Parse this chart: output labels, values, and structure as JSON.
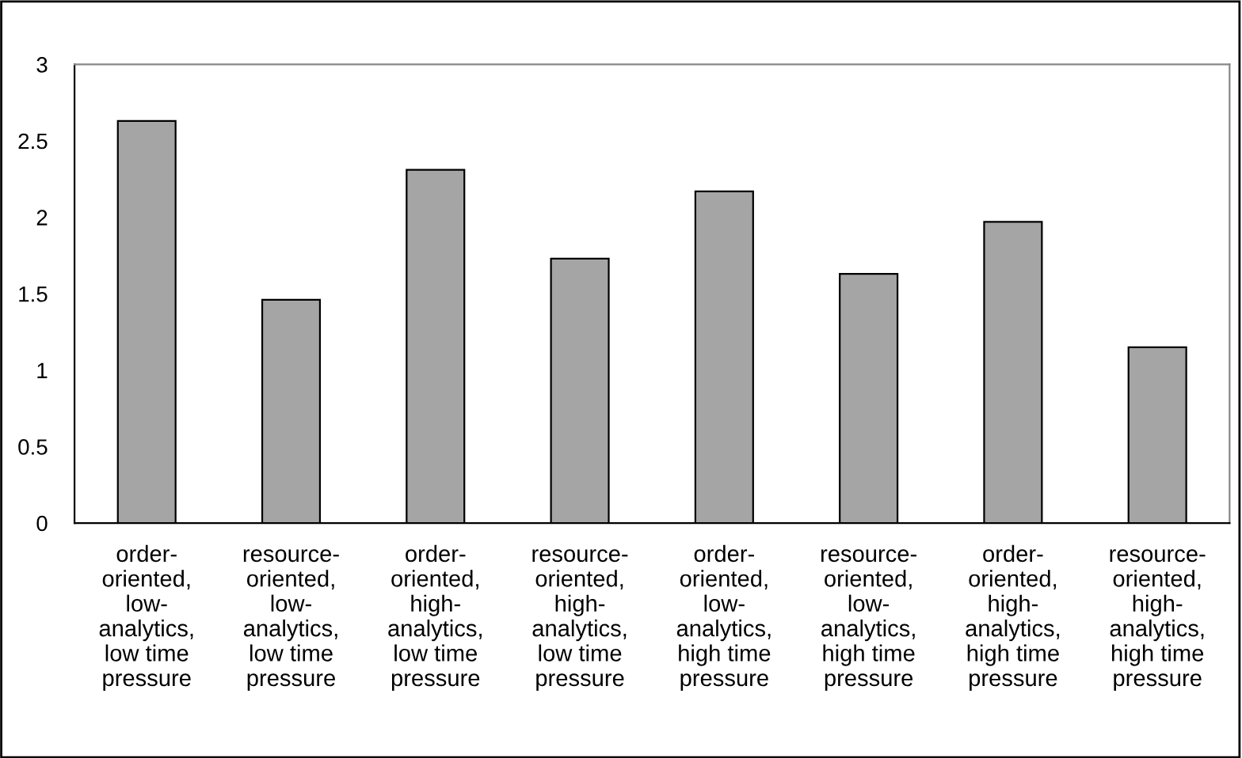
{
  "chart_data": {
    "type": "bar",
    "categories": [
      "order-\noriented,\nlow-\nanalytics,\nlow time\npressure",
      "resource-\noriented,\nlow-\nanalytics,\nlow time\npressure",
      "order-\noriented,\nhigh-\nanalytics,\nlow time\npressure",
      "resource-\noriented,\nhigh-\nanalytics,\nlow time\npressure",
      "order-\noriented,\nlow-\nanalytics,\nhigh time\npressure",
      "resource-\noriented,\nlow-\nanalytics,\nhigh time\npressure",
      "order-\noriented,\nhigh-\nanalytics,\nhigh time\npressure",
      "resource-\noriented,\nhigh-\nanalytics,\nhigh time\npressure"
    ],
    "values": [
      2.63,
      1.46,
      2.31,
      1.73,
      2.17,
      1.63,
      1.97,
      1.15
    ],
    "color": "#a5a5a5",
    "ylim": [
      0,
      3
    ],
    "yticks": [
      0,
      0.5,
      1,
      1.5,
      2,
      2.5,
      3
    ],
    "grid": false
  }
}
